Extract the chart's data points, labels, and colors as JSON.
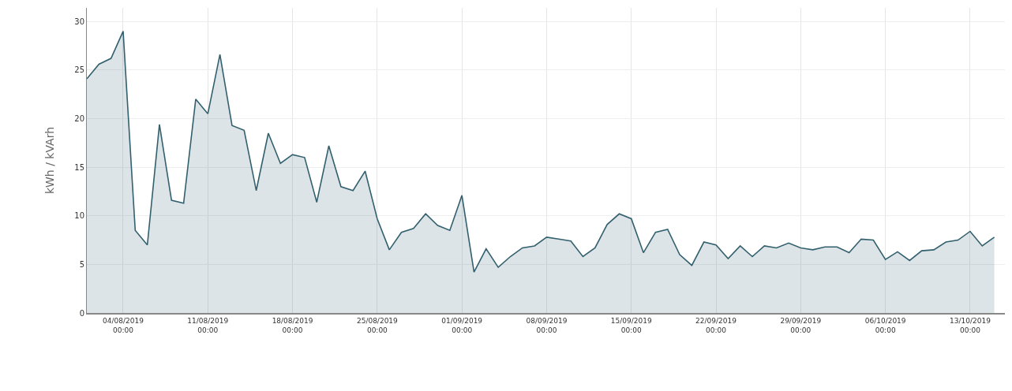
{
  "chart_data": {
    "type": "area",
    "ylabel": "kWh / kVArh",
    "x": [
      "2019-08-01",
      "2019-08-02",
      "2019-08-03",
      "2019-08-04",
      "2019-08-05",
      "2019-08-06",
      "2019-08-07",
      "2019-08-08",
      "2019-08-09",
      "2019-08-10",
      "2019-08-11",
      "2019-08-12",
      "2019-08-13",
      "2019-08-14",
      "2019-08-15",
      "2019-08-16",
      "2019-08-17",
      "2019-08-18",
      "2019-08-19",
      "2019-08-20",
      "2019-08-21",
      "2019-08-22",
      "2019-08-23",
      "2019-08-24",
      "2019-08-25",
      "2019-08-26",
      "2019-08-27",
      "2019-08-28",
      "2019-08-29",
      "2019-08-30",
      "2019-08-31",
      "2019-09-01",
      "2019-09-02",
      "2019-09-03",
      "2019-09-04",
      "2019-09-05",
      "2019-09-06",
      "2019-09-07",
      "2019-09-08",
      "2019-09-09",
      "2019-09-10",
      "2019-09-11",
      "2019-09-12",
      "2019-09-13",
      "2019-09-14",
      "2019-09-15",
      "2019-09-16",
      "2019-09-17",
      "2019-09-18",
      "2019-09-19",
      "2019-09-20",
      "2019-09-21",
      "2019-09-22",
      "2019-09-23",
      "2019-09-24",
      "2019-09-25",
      "2019-09-26",
      "2019-09-27",
      "2019-09-28",
      "2019-09-29",
      "2019-09-30",
      "2019-10-01",
      "2019-10-02",
      "2019-10-03",
      "2019-10-04",
      "2019-10-05",
      "2019-10-06",
      "2019-10-07",
      "2019-10-08",
      "2019-10-09",
      "2019-10-10",
      "2019-10-11",
      "2019-10-12",
      "2019-10-13",
      "2019-10-14",
      "2019-10-15"
    ],
    "series": [
      {
        "color": "#33606e",
        "values": [
          24.1,
          25.6,
          26.2,
          29.0,
          8.5,
          7.0,
          19.4,
          11.6,
          11.3,
          22.0,
          20.5,
          26.6,
          19.3,
          18.8,
          12.6,
          18.5,
          15.4,
          16.3,
          16.0,
          11.4,
          17.2,
          13.0,
          12.6,
          14.6,
          9.7,
          6.5,
          8.3,
          8.7,
          10.2,
          9.0,
          8.5,
          12.1,
          4.2,
          6.6,
          4.7,
          5.8,
          6.7,
          6.9,
          7.8,
          7.6,
          7.4,
          5.8,
          6.7,
          9.1,
          10.2,
          9.7,
          6.2,
          8.3,
          8.6,
          6.0,
          4.9,
          7.3,
          7.0,
          5.6,
          6.9,
          5.8,
          6.9,
          6.7,
          7.2,
          6.7,
          6.5,
          6.8,
          6.8,
          6.2,
          7.6,
          7.5,
          5.5,
          6.3,
          5.4,
          6.4,
          6.5,
          7.3,
          7.5,
          8.4,
          6.9,
          7.8
        ]
      }
    ],
    "xlim": [
      "2019-08-01",
      "2019-10-15T21:00"
    ],
    "xticks": [
      {
        "value": "2019-08-04",
        "label": "04/08/2019\n00:00"
      },
      {
        "value": "2019-08-11",
        "label": "11/08/2019\n00:00"
      },
      {
        "value": "2019-08-18",
        "label": "18/08/2019\n00:00"
      },
      {
        "value": "2019-08-25",
        "label": "25/08/2019\n00:00"
      },
      {
        "value": "2019-09-01",
        "label": "01/09/2019\n00:00"
      },
      {
        "value": "2019-09-08",
        "label": "08/09/2019\n00:00"
      },
      {
        "value": "2019-09-15",
        "label": "15/09/2019\n00:00"
      },
      {
        "value": "2019-09-22",
        "label": "22/09/2019\n00:00"
      },
      {
        "value": "2019-09-29",
        "label": "29/09/2019\n00:00"
      },
      {
        "value": "2019-10-06",
        "label": "06/10/2019\n00:00"
      },
      {
        "value": "2019-10-13",
        "label": "13/10/2019\n00:00"
      }
    ],
    "ylim": [
      0,
      31.4
    ],
    "yticks": [
      0,
      5,
      10,
      15,
      20,
      25,
      30
    ],
    "grid": true,
    "marker": "none",
    "line_style": "solid"
  }
}
